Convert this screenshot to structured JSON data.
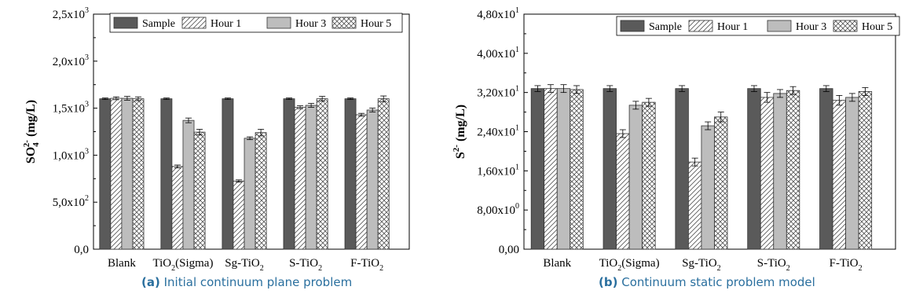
{
  "colors": {
    "sample": "#5a5a5a",
    "hour1_stroke": "#555555",
    "hour3": "#bdbdbd",
    "hour5_stroke": "#555555",
    "caption": "#2a6f9e"
  },
  "captions": [
    {
      "tag": "(a)",
      "text": " Initial continuum plane problem"
    },
    {
      "tag": "(b)",
      "text": " Continuum static problem model"
    }
  ],
  "chart_data": [
    {
      "type": "bar",
      "ylabel_main": "SO",
      "ylabel_sup": "2-",
      "ylabel_sub": "4",
      "ylabel_unit": " (mg/L)",
      "ylim": [
        0,
        2500
      ],
      "yticks": [
        0,
        500,
        1000,
        1500,
        2000,
        2500
      ],
      "ytick_labels": [
        "0,0",
        "5,0x10",
        "1,0x10",
        "1,5x10",
        "2,0x10",
        "2,5x10"
      ],
      "ytick_exps": [
        "",
        "2",
        "3",
        "3",
        "3",
        "3"
      ],
      "categories": [
        "Blank",
        "TiO2(Sigma)",
        "Sg-TiO2",
        "S-TiO2",
        "F-TiO2"
      ],
      "category_labels": [
        {
          "main": "Blank",
          "sub": "",
          "rest": ""
        },
        {
          "main": "TiO",
          "sub": "2",
          "rest": "(Sigma)"
        },
        {
          "main": "Sg-TiO",
          "sub": "2",
          "rest": ""
        },
        {
          "main": "S-TiO",
          "sub": "2",
          "rest": ""
        },
        {
          "main": "F-TiO",
          "sub": "2",
          "rest": ""
        }
      ],
      "legend": [
        "Sample",
        "Hour 1",
        "Hour 3",
        "Hour 5"
      ],
      "legend_position": "top",
      "series": [
        {
          "name": "Sample",
          "values": [
            1600,
            1600,
            1600,
            1600,
            1600
          ],
          "errors": [
            8,
            8,
            8,
            8,
            8
          ]
        },
        {
          "name": "Hour 1",
          "values": [
            1605,
            880,
            725,
            1510,
            1430
          ],
          "errors": [
            15,
            15,
            12,
            15,
            15
          ]
        },
        {
          "name": "Hour 3",
          "values": [
            1605,
            1370,
            1180,
            1530,
            1480
          ],
          "errors": [
            20,
            25,
            15,
            20,
            20
          ]
        },
        {
          "name": "Hour 5",
          "values": [
            1600,
            1245,
            1240,
            1600,
            1600
          ],
          "errors": [
            20,
            30,
            35,
            25,
            30
          ]
        }
      ]
    },
    {
      "type": "bar",
      "ylabel_main": "S",
      "ylabel_sup": "2-",
      "ylabel_sub": "",
      "ylabel_unit": " (mg/L)",
      "ylim": [
        0,
        48
      ],
      "yticks": [
        0,
        8,
        16,
        24,
        32,
        40,
        48
      ],
      "ytick_labels": [
        "0,00",
        "8,00x10",
        "1,60x10",
        "2,40x10",
        "3,20x10",
        "4,00x10",
        "4,80x10"
      ],
      "ytick_exps": [
        "",
        "0",
        "1",
        "1",
        "1",
        "1",
        "1"
      ],
      "categories": [
        "Blank",
        "TiO2(Sigma)",
        "Sg-TiO2",
        "S-TiO2",
        "F-TiO2"
      ],
      "category_labels": [
        {
          "main": "Blank",
          "sub": "",
          "rest": ""
        },
        {
          "main": "TiO",
          "sub": "2",
          "rest": "(Sigma)"
        },
        {
          "main": "Sg-TiO",
          "sub": "2",
          "rest": ""
        },
        {
          "main": "S-TiO",
          "sub": "2",
          "rest": ""
        },
        {
          "main": "F-TiO",
          "sub": "2",
          "rest": ""
        }
      ],
      "legend": [
        "Sample",
        "Hour 1",
        "Hour 3",
        "Hour 5"
      ],
      "legend_position": "top",
      "series": [
        {
          "name": "Sample",
          "values": [
            32.8,
            32.8,
            32.8,
            32.8,
            32.8
          ],
          "errors": [
            0.6,
            0.6,
            0.6,
            0.6,
            0.6
          ]
        },
        {
          "name": "Hour 1",
          "values": [
            32.8,
            23.6,
            17.8,
            31.0,
            30.4
          ],
          "errors": [
            0.8,
            0.8,
            0.8,
            1.0,
            1.0
          ]
        },
        {
          "name": "Hour 3",
          "values": [
            32.8,
            29.4,
            25.2,
            31.8,
            31.0
          ],
          "errors": [
            0.8,
            0.8,
            0.8,
            0.8,
            0.8
          ]
        },
        {
          "name": "Hour 5",
          "values": [
            32.6,
            30.0,
            27.0,
            32.4,
            32.2
          ],
          "errors": [
            0.8,
            0.8,
            1.0,
            0.8,
            0.8
          ]
        }
      ]
    }
  ]
}
